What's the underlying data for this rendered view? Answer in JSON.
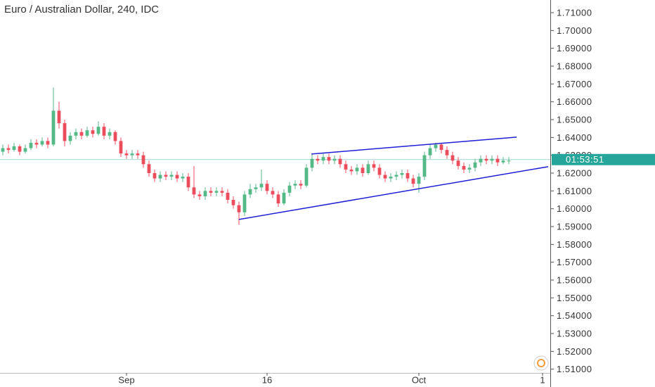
{
  "chart_data": {
    "type": "candlestick",
    "title": "Euro / Australian Dollar, 240, IDC",
    "up_color": "#53b987",
    "down_color": "#eb4d5c",
    "open": [
      1.632,
      1.634,
      1.633,
      1.635,
      1.632,
      1.634,
      1.637,
      1.636,
      1.638,
      1.636,
      1.655,
      1.648,
      1.638,
      1.641,
      1.643,
      1.641,
      1.644,
      1.642,
      1.646,
      1.641,
      1.643,
      1.638,
      1.631,
      1.63,
      1.631,
      1.63,
      1.625,
      1.62,
      1.617,
      1.619,
      1.618,
      1.619,
      1.617,
      1.618,
      1.612,
      1.608,
      1.607,
      1.61,
      1.609,
      1.61,
      1.609,
      1.605,
      1.602,
      1.598,
      1.608,
      1.611,
      1.612,
      1.614,
      1.61,
      1.608,
      1.603,
      1.609,
      1.613,
      1.614,
      1.613,
      1.623,
      1.628,
      1.627,
      1.629,
      1.627,
      1.628,
      1.625,
      1.622,
      1.621,
      1.623,
      1.62,
      1.625,
      1.623,
      1.619,
      1.617,
      1.618,
      1.619,
      1.62,
      1.617,
      1.614,
      1.618,
      1.63,
      1.634,
      1.636,
      1.633,
      1.63,
      1.627,
      1.624,
      1.622,
      1.623,
      1.626,
      1.628,
      1.627,
      1.628,
      1.626,
      1.627
    ],
    "high": [
      1.636,
      1.636,
      1.637,
      1.636,
      1.636,
      1.639,
      1.639,
      1.64,
      1.64,
      1.668,
      1.66,
      1.65,
      1.643,
      1.645,
      1.645,
      1.646,
      1.646,
      1.649,
      1.648,
      1.645,
      1.644,
      1.64,
      1.633,
      1.633,
      1.633,
      1.632,
      1.627,
      1.622,
      1.621,
      1.621,
      1.621,
      1.621,
      1.62,
      1.62,
      1.624,
      1.61,
      1.612,
      1.612,
      1.612,
      1.612,
      1.611,
      1.607,
      1.604,
      1.61,
      1.614,
      1.614,
      1.622,
      1.616,
      1.612,
      1.61,
      1.611,
      1.615,
      1.616,
      1.616,
      1.625,
      1.631,
      1.63,
      1.631,
      1.631,
      1.63,
      1.63,
      1.627,
      1.624,
      1.625,
      1.625,
      1.627,
      1.627,
      1.625,
      1.621,
      1.62,
      1.621,
      1.622,
      1.622,
      1.619,
      1.62,
      1.632,
      1.636,
      1.637,
      1.637,
      1.635,
      1.632,
      1.629,
      1.626,
      1.625,
      1.628,
      1.63,
      1.63,
      1.63,
      1.63,
      1.629,
      1.629
    ],
    "low": [
      1.63,
      1.631,
      1.632,
      1.63,
      1.631,
      1.633,
      1.634,
      1.635,
      1.634,
      1.635,
      1.645,
      1.635,
      1.636,
      1.639,
      1.639,
      1.64,
      1.64,
      1.641,
      1.639,
      1.639,
      1.636,
      1.629,
      1.628,
      1.628,
      1.628,
      1.623,
      1.618,
      1.615,
      1.615,
      1.616,
      1.616,
      1.615,
      1.615,
      1.61,
      1.606,
      1.605,
      1.605,
      1.607,
      1.607,
      1.607,
      1.603,
      1.6,
      1.591,
      1.596,
      1.606,
      1.609,
      1.61,
      1.608,
      1.606,
      1.601,
      1.602,
      1.607,
      1.611,
      1.611,
      1.612,
      1.621,
      1.625,
      1.625,
      1.625,
      1.625,
      1.623,
      1.62,
      1.619,
      1.619,
      1.618,
      1.619,
      1.621,
      1.617,
      1.615,
      1.615,
      1.616,
      1.617,
      1.615,
      1.612,
      1.609,
      1.616,
      1.628,
      1.632,
      1.631,
      1.628,
      1.625,
      1.622,
      1.62,
      1.62,
      1.621,
      1.624,
      1.625,
      1.625,
      1.624,
      1.625,
      1.625
    ],
    "close": [
      1.634,
      1.633,
      1.635,
      1.632,
      1.634,
      1.637,
      1.636,
      1.638,
      1.636,
      1.655,
      1.648,
      1.638,
      1.641,
      1.643,
      1.641,
      1.644,
      1.642,
      1.646,
      1.641,
      1.643,
      1.638,
      1.631,
      1.63,
      1.631,
      1.63,
      1.625,
      1.62,
      1.617,
      1.619,
      1.618,
      1.619,
      1.617,
      1.618,
      1.612,
      1.608,
      1.607,
      1.61,
      1.609,
      1.61,
      1.609,
      1.605,
      1.602,
      1.598,
      1.608,
      1.611,
      1.612,
      1.614,
      1.61,
      1.608,
      1.603,
      1.609,
      1.613,
      1.614,
      1.613,
      1.623,
      1.628,
      1.627,
      1.629,
      1.627,
      1.628,
      1.625,
      1.622,
      1.621,
      1.623,
      1.62,
      1.625,
      1.623,
      1.619,
      1.617,
      1.618,
      1.619,
      1.62,
      1.617,
      1.614,
      1.618,
      1.63,
      1.634,
      1.636,
      1.633,
      1.63,
      1.627,
      1.624,
      1.622,
      1.623,
      1.626,
      1.628,
      1.627,
      1.628,
      1.626,
      1.627,
      1.627
    ],
    "xlim": [
      -0.5,
      97
    ],
    "xticks": [
      {
        "value": 22,
        "label": "Sep"
      },
      {
        "value": 47,
        "label": "16"
      },
      {
        "value": 74,
        "label": "Oct"
      },
      {
        "value": 96,
        "label": "1"
      }
    ],
    "ylim": [
      1.5079,
      1.7171
    ],
    "yticks": [
      {
        "value": 1.51,
        "label": "1.51000"
      },
      {
        "value": 1.52,
        "label": "1.52000"
      },
      {
        "value": 1.53,
        "label": "1.53000"
      },
      {
        "value": 1.54,
        "label": "1.54000"
      },
      {
        "value": 1.55,
        "label": "1.55000"
      },
      {
        "value": 1.56,
        "label": "1.56000"
      },
      {
        "value": 1.57,
        "label": "1.57000"
      },
      {
        "value": 1.58,
        "label": "1.58000"
      },
      {
        "value": 1.59,
        "label": "1.59000"
      },
      {
        "value": 1.6,
        "label": "1.60000"
      },
      {
        "value": 1.61,
        "label": "1.61000"
      },
      {
        "value": 1.62,
        "label": "1.62000"
      },
      {
        "value": 1.63,
        "label": "1.63000"
      },
      {
        "value": 1.64,
        "label": "1.64000"
      },
      {
        "value": 1.65,
        "label": "1.65000"
      },
      {
        "value": 1.66,
        "label": "1.66000"
      },
      {
        "value": 1.67,
        "label": "1.67000"
      },
      {
        "value": 1.68,
        "label": "1.68000"
      },
      {
        "value": 1.69,
        "label": "1.69000"
      },
      {
        "value": 1.7,
        "label": "1.70000"
      },
      {
        "value": 1.71,
        "label": "1.71000"
      }
    ],
    "last_price": 1.6276,
    "countdown": "01:53:51",
    "price_label_color": "#26a69a",
    "trendline_color": "#1f1fd6",
    "trendlines": [
      {
        "x": [
          54.9,
          91.4
        ],
        "y": [
          1.6307,
          1.6402
        ]
      },
      {
        "x": [
          42,
          97
        ],
        "y": [
          1.594,
          1.6236
        ]
      }
    ]
  }
}
